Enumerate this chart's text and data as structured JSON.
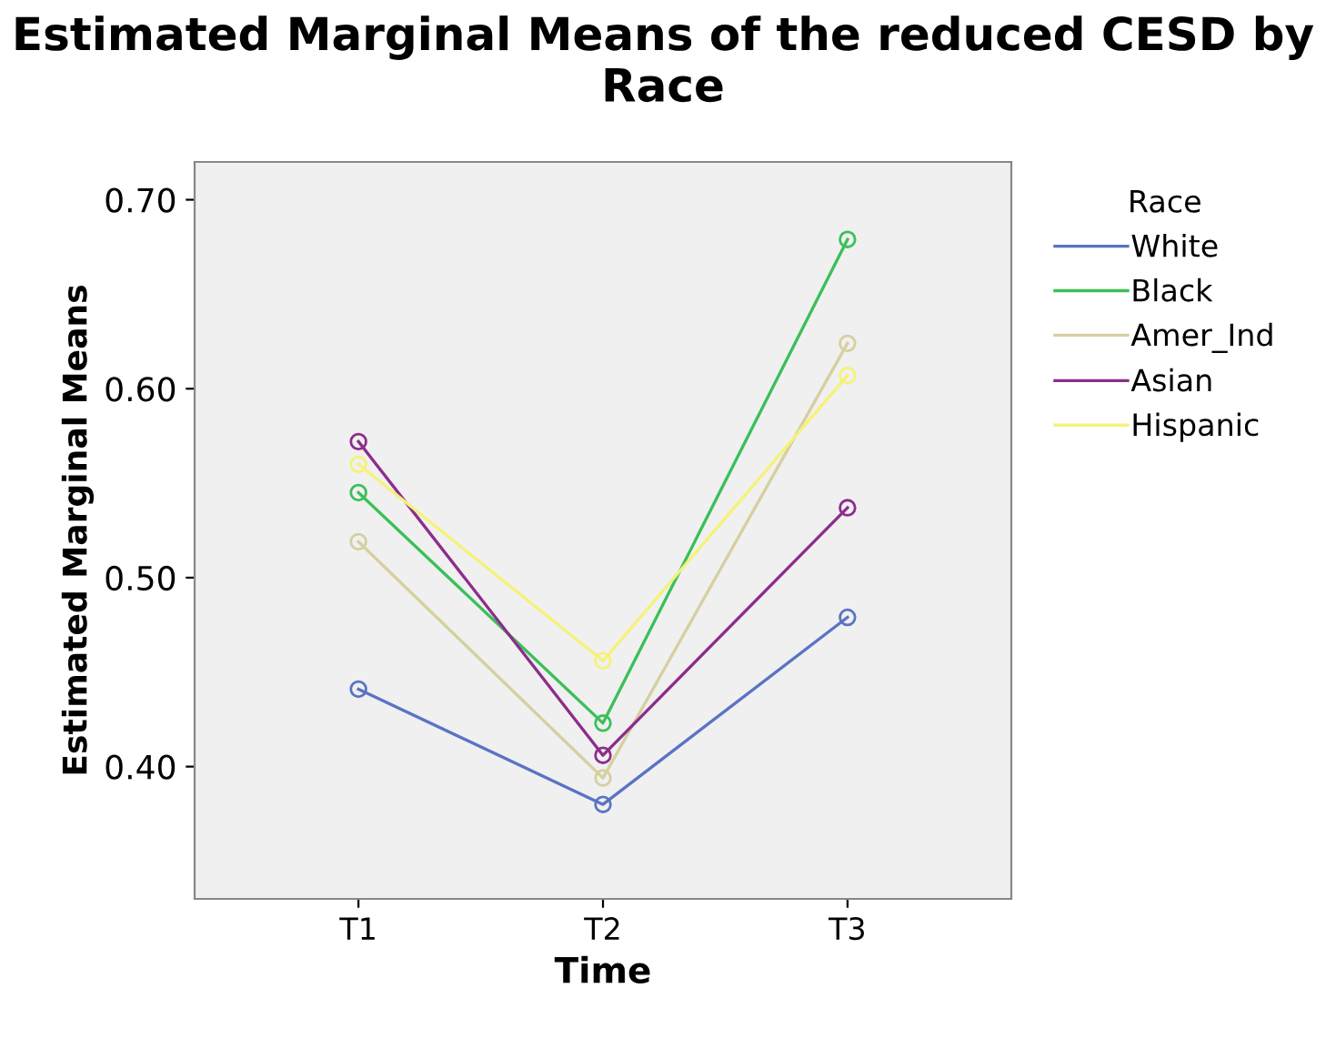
{
  "chart_data": {
    "type": "line",
    "title": "Estimated Marginal Means of the reduced CESD by Race",
    "xlabel": "Time",
    "ylabel": "Estimated Marginal Means",
    "legend_title": "Race",
    "categories": [
      "T1",
      "T2",
      "T3"
    ],
    "series": [
      {
        "name": "White",
        "color": "#5a73c4",
        "values": [
          0.441,
          0.38,
          0.479
        ]
      },
      {
        "name": "Black",
        "color": "#3cbf5a",
        "values": [
          0.545,
          0.423,
          0.679
        ]
      },
      {
        "name": "Amer_Ind",
        "color": "#d6cfa0",
        "values": [
          0.519,
          0.394,
          0.624
        ]
      },
      {
        "name": "Asian",
        "color": "#8c2d8c",
        "values": [
          0.572,
          0.406,
          0.537
        ]
      },
      {
        "name": "Hispanic",
        "color": "#f5f27a",
        "values": [
          0.56,
          0.456,
          0.607
        ]
      }
    ],
    "ylim": [
      0.33,
      0.72
    ],
    "yticks": [
      {
        "value": 0.4,
        "label": "0.40"
      },
      {
        "value": 0.5,
        "label": "0.50"
      },
      {
        "value": 0.6,
        "label": "0.60"
      },
      {
        "value": 0.7,
        "label": "0.70"
      }
    ],
    "grid": false,
    "legend": "right",
    "marker": "circle",
    "line_style": "solid"
  }
}
